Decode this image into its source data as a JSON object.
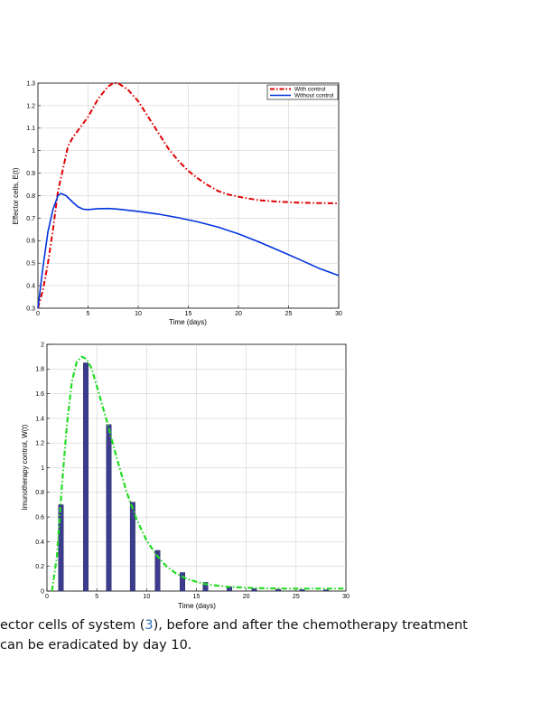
{
  "chart_data": [
    {
      "type": "line",
      "xlabel": "Time (days)",
      "ylabel": "Effector cells, E(t)",
      "xlim": [
        0,
        30
      ],
      "ylim": [
        0.3,
        1.3
      ],
      "xticks": [
        0,
        5,
        10,
        15,
        20,
        25,
        30
      ],
      "yticks": [
        0.3,
        0.4,
        0.5,
        0.6,
        0.7,
        0.8,
        0.9,
        1,
        1.1,
        1.2,
        1.3
      ],
      "grid": true,
      "legend": "top-right",
      "series": [
        {
          "name": "With control",
          "color": "#e00000",
          "style": "dash-dot",
          "x": [
            0,
            0.5,
            1,
            1.5,
            2,
            2.5,
            3,
            3.5,
            4,
            4.5,
            5,
            6,
            7,
            7.5,
            8,
            9,
            10,
            11,
            12,
            13,
            14,
            15,
            16,
            17,
            18,
            19,
            20,
            22,
            24,
            26,
            28,
            30
          ],
          "y": [
            0.3,
            0.38,
            0.5,
            0.65,
            0.82,
            0.92,
            1.02,
            1.06,
            1.09,
            1.12,
            1.15,
            1.23,
            1.285,
            1.3,
            1.3,
            1.27,
            1.22,
            1.15,
            1.08,
            1.01,
            0.955,
            0.91,
            0.875,
            0.845,
            0.82,
            0.805,
            0.795,
            0.78,
            0.773,
            0.769,
            0.767,
            0.766
          ]
        },
        {
          "name": "Without control",
          "color": "#0033dd",
          "style": "solid",
          "x": [
            0,
            0.5,
            1,
            1.5,
            2,
            2.3,
            2.8,
            3.5,
            4,
            4.5,
            5,
            5.5,
            6,
            7,
            8,
            10,
            12,
            14,
            16,
            18,
            20,
            22,
            24,
            26,
            28,
            30
          ],
          "y": [
            0.3,
            0.48,
            0.64,
            0.74,
            0.8,
            0.81,
            0.8,
            0.77,
            0.75,
            0.74,
            0.738,
            0.74,
            0.742,
            0.743,
            0.74,
            0.73,
            0.718,
            0.702,
            0.683,
            0.66,
            0.63,
            0.595,
            0.557,
            0.518,
            0.478,
            0.445
          ]
        }
      ]
    },
    {
      "type": "bar",
      "xlabel": "Time (days)",
      "ylabel": "Imunotherapy control, W(t)",
      "xlim": [
        0,
        30
      ],
      "ylim": [
        0,
        2
      ],
      "xticks": [
        0,
        5,
        10,
        15,
        20,
        25,
        30
      ],
      "yticks": [
        0,
        0.2,
        0.4,
        0.6,
        0.8,
        1,
        1.2,
        1.4,
        1.6,
        1.8,
        2
      ],
      "grid": true,
      "bars": {
        "color": "#3c3c8e",
        "x": [
          1.4,
          3.9,
          6.2,
          8.6,
          11.1,
          13.6,
          15.9,
          18.3,
          20.8,
          23.2,
          25.6,
          28
        ],
        "values": [
          0.7,
          1.85,
          1.35,
          0.72,
          0.33,
          0.15,
          0.07,
          0.035,
          0.02,
          0.015,
          0.012,
          0.01
        ]
      },
      "curve": {
        "color": "#22dd22",
        "style": "dash-dot",
        "x": [
          0.5,
          1,
          1.5,
          2,
          2.5,
          3,
          3.5,
          4,
          4.5,
          5,
          6,
          7,
          8,
          9,
          10,
          11,
          12,
          13,
          14,
          15,
          16,
          17,
          18,
          20,
          22,
          24,
          26,
          28,
          30
        ],
        "y": [
          0,
          0.28,
          0.85,
          1.35,
          1.7,
          1.86,
          1.9,
          1.88,
          1.8,
          1.66,
          1.38,
          1.08,
          0.8,
          0.58,
          0.41,
          0.29,
          0.2,
          0.14,
          0.1,
          0.075,
          0.055,
          0.045,
          0.035,
          0.027,
          0.022,
          0.02,
          0.02,
          0.02,
          0.02
        ]
      }
    }
  ],
  "caption": {
    "line1_a": "ector cells of system (",
    "line1_ref": "3",
    "line1_b": "), before and after the chemotherapy treatment",
    "line2": "can be eradicated by day 10."
  }
}
